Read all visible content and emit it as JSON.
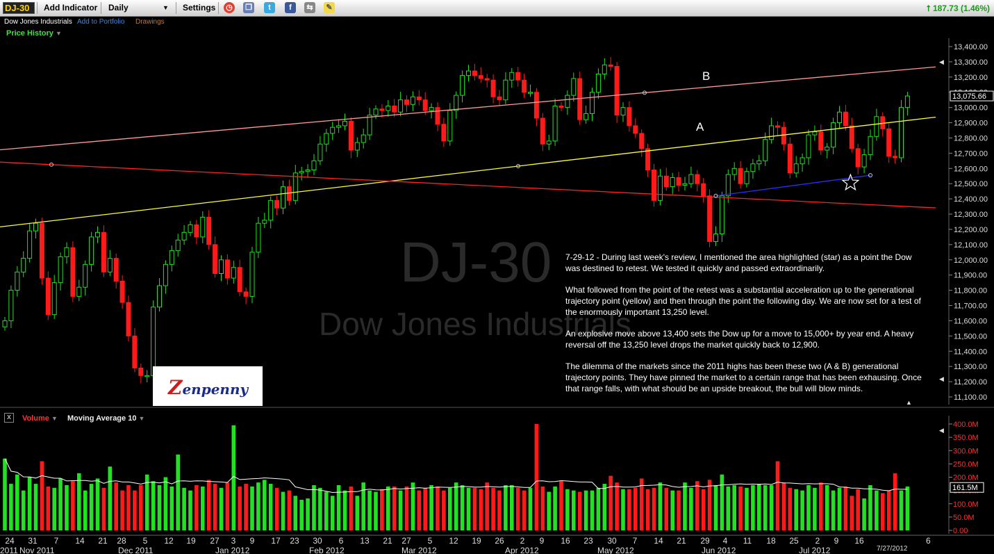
{
  "toolbar": {
    "symbol": "DJ-30",
    "add_indicator": "Add Indicator",
    "period": "Daily",
    "settings": "Settings",
    "change": "187.73 (1.46%)"
  },
  "subbar": {
    "name": "Dow Jones Industrials",
    "add_portfolio": "Add to Portfolio",
    "drawings": "Drawings"
  },
  "panel": {
    "price_history": "Price History"
  },
  "watermark": {
    "symbol": "DJ-30",
    "name": "Dow Jones Industrials"
  },
  "logo": {
    "first": "Z",
    "rest": "enpenny"
  },
  "note": {
    "p1": "7-29-12 - During last week's review, I mentioned the area highlighted (star) as a point the Dow was destined to retest. We tested it quickly and passed extraordinarily.",
    "p2": "What followed from the point of the retest was a substantial acceleration up to the generational trajectory point (yellow) and then through the point the following day. We are now set for a test of the enormously important 13,250 level.",
    "p3": "An explosive move above 13,400 sets the Dow up for a move to 15,000+ by year end. A heavy reversal off the 13,250 level drops the market quickly back to 12,900.",
    "p4": "The dilemma of the markets since the 2011 highs has been these two (A & B) generational trajectory points. They have pinned the market to a certain range that has been exhausing. Once that range falls, with what should be an upside breakout, the bull will blow minds."
  },
  "volume_panel": {
    "close": "x",
    "volume": "Volume",
    "ma": "Moving Average 10"
  },
  "chart_data": [
    {
      "type": "candlestick",
      "title": "Price History",
      "ylim": [
        11050,
        13450
      ],
      "ytick_labels": [
        "13,400.00",
        "13,300.00",
        "13,200.00",
        "13,100.00",
        "13,000.00",
        "12,900.00",
        "12,800.00",
        "12,700.00",
        "12,600.00",
        "12,500.00",
        "12,400.00",
        "12,300.00",
        "12,200.00",
        "12,100.00",
        "12,000.00",
        "11,900.00",
        "11,800.00",
        "11,700.00",
        "11,600.00",
        "11,500.00",
        "11,400.00",
        "11,300.00",
        "11,200.00",
        "11,100.00"
      ],
      "ytick_values": [
        13400,
        13300,
        13200,
        13100,
        13000,
        12900,
        12800,
        12700,
        12600,
        12500,
        12400,
        12300,
        12200,
        12100,
        12000,
        11900,
        11800,
        11700,
        11600,
        11500,
        11400,
        11300,
        11200,
        11100
      ],
      "last_value": 13075.66,
      "last_label": "13,075.66",
      "labels": [
        {
          "text": "B",
          "x": "May 2012",
          "y": 13230
        },
        {
          "text": "A",
          "x": "May 2012",
          "y": 12830
        }
      ],
      "closes": [
        11600,
        11800,
        11920,
        12010,
        12190,
        12240,
        11880,
        11640,
        11850,
        12020,
        12080,
        11760,
        11820,
        11970,
        12150,
        12180,
        11920,
        12010,
        11860,
        11720,
        11500,
        11290,
        11240,
        11240,
        11690,
        11830,
        11970,
        12060,
        12130,
        12180,
        12230,
        12150,
        12280,
        12100,
        11910,
        12000,
        11880,
        11950,
        11790,
        11760,
        12050,
        12240,
        12260,
        12390,
        12340,
        12480,
        12390,
        12570,
        12580,
        12590,
        12650,
        12760,
        12830,
        12870,
        12880,
        12910,
        12720,
        12770,
        12820,
        12950,
        12990,
        12980,
        13010,
        12970,
        13050,
        13020,
        13070,
        13050,
        12980,
        13000,
        12890,
        12780,
        12980,
        13080,
        13210,
        13240,
        13210,
        13190,
        13180,
        13070,
        13050,
        13180,
        13230,
        13180,
        13100,
        13100,
        12930,
        12760,
        12780,
        13010,
        13000,
        13080,
        13190,
        12920,
        12960,
        13100,
        13220,
        13280,
        13270,
        12950,
        13000,
        12880,
        12830,
        12730,
        12590,
        12390,
        12550,
        12480,
        12540,
        12490,
        12500,
        12560,
        12500,
        12420,
        12120,
        12170,
        12420,
        12560,
        12600,
        12500,
        12580,
        12630,
        12650,
        12790,
        12880,
        12870,
        12760,
        12570,
        12630,
        12670,
        12820,
        12840,
        12720,
        12740,
        12900,
        12970,
        12880,
        12730,
        12610,
        12690,
        12810,
        12940,
        12860,
        12680,
        12670,
        13000,
        13075.66
      ],
      "lines": [
        {
          "name": "B",
          "color": "#ff9a9a",
          "from": {
            "bar": 0,
            "y": 12725
          },
          "to": {
            "bar": 146,
            "y": 13250
          }
        },
        {
          "name": "A",
          "color": "#ffff33",
          "from": {
            "bar": 0,
            "y": 12220
          },
          "to": {
            "bar": 146,
            "y": 12915
          }
        },
        {
          "name": "lower",
          "color": "#ff2020",
          "from": {
            "bar": 0,
            "y": 12640
          },
          "to": {
            "bar": 146,
            "y": 12350
          }
        },
        {
          "name": "support",
          "color": "#2c2cff",
          "from": {
            "bar": 115,
            "y": 12420
          },
          "to": {
            "bar": 140,
            "y": 12555
          }
        }
      ],
      "star": {
        "bar": 136,
        "y": 12505
      }
    },
    {
      "type": "bar",
      "title": "Volume",
      "ylim": [
        0,
        420
      ],
      "ytick_labels": [
        "400.0M",
        "350.0M",
        "300.0M",
        "250.0M",
        "200.0M",
        "150.0M",
        "100.0M",
        "50.0M",
        "0.00"
      ],
      "ytick_values": [
        400,
        350,
        300,
        250,
        200,
        150,
        100,
        50,
        0
      ],
      "last_label": "161.5M",
      "ma_series": "Moving Average 10",
      "values": [
        270,
        175,
        210,
        150,
        200,
        175,
        260,
        165,
        160,
        195,
        170,
        185,
        215,
        150,
        175,
        195,
        160,
        240,
        180,
        150,
        170,
        150,
        170,
        210,
        185,
        170,
        200,
        165,
        285,
        160,
        150,
        170,
        165,
        190,
        175,
        160,
        180,
        395,
        165,
        175,
        165,
        180,
        190,
        175,
        160,
        145,
        150,
        130,
        115,
        120,
        170,
        160,
        145,
        130,
        170,
        150,
        165,
        130,
        180,
        150,
        145,
        155,
        165,
        165,
        150,
        165,
        180,
        150,
        160,
        170,
        165,
        150,
        160,
        180,
        170,
        160,
        160,
        155,
        180,
        160,
        150,
        170,
        170,
        160,
        150,
        160,
        400,
        165,
        145,
        165,
        185,
        155,
        150,
        145,
        150,
        150,
        160,
        175,
        205,
        180,
        155,
        155,
        160,
        195,
        155,
        160,
        180,
        160,
        150,
        150,
        180,
        160,
        185,
        155,
        190,
        170,
        210,
        165,
        170,
        165,
        160,
        170,
        175,
        170,
        170,
        260,
        180,
        160,
        155,
        150,
        170,
        160,
        180,
        170,
        150,
        160,
        165,
        130,
        155,
        120,
        170,
        150,
        140,
        150,
        215,
        150,
        165
      ]
    }
  ],
  "x_axis": {
    "ticks": [
      "24",
      "31",
      "7",
      "14",
      "21",
      "28",
      "5",
      "12",
      "19",
      "27",
      "3",
      "9",
      "17",
      "23",
      "30",
      "6",
      "13",
      "21",
      "27",
      "5",
      "12",
      "19",
      "26",
      "2",
      "9",
      "16",
      "23",
      "30",
      "7",
      "14",
      "21",
      "29",
      "4",
      "11",
      "18",
      "25",
      "2",
      "9",
      "16"
    ],
    "months": [
      "2011",
      "Nov 2011",
      "Dec 2011",
      "Jan 2012",
      "Feb 2012",
      "Mar 2012",
      "Apr 2012",
      "May 2012",
      "Jun 2012",
      "Jul 2012"
    ],
    "date_label": "7/27/2012",
    "last_tick": "6"
  }
}
